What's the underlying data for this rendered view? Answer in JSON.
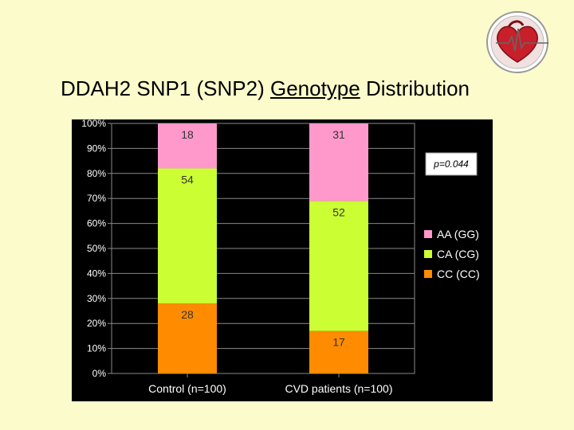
{
  "title": {
    "part1": "DDAH2 SNP1 (SNP2) ",
    "underlined": "Genotype",
    "part2": " Distribution"
  },
  "logo_icon": "heart-ecg-icon",
  "annotation": "p=0.044",
  "chart_data": {
    "type": "bar",
    "stacked": true,
    "categories": [
      "Control (n=100)",
      "CVD patients (n=100)"
    ],
    "series": [
      {
        "name": "CC (CC)",
        "color": "#ff8c00",
        "values": [
          28,
          17
        ]
      },
      {
        "name": "CA (CG)",
        "color": "#ccff33",
        "values": [
          54,
          52
        ]
      },
      {
        "name": "AA (GG)",
        "color": "#ff99cc",
        "values": [
          18,
          31
        ]
      }
    ],
    "ylim": [
      0,
      100
    ],
    "yticks": [
      "0%",
      "10%",
      "20%",
      "30%",
      "40%",
      "50%",
      "60%",
      "70%",
      "80%",
      "90%",
      "100%"
    ],
    "legend_order": [
      "AA (GG)",
      "CA (CG)",
      "CC (CC)"
    ],
    "legend_position": "right",
    "title": "",
    "xlabel": "",
    "ylabel": ""
  }
}
